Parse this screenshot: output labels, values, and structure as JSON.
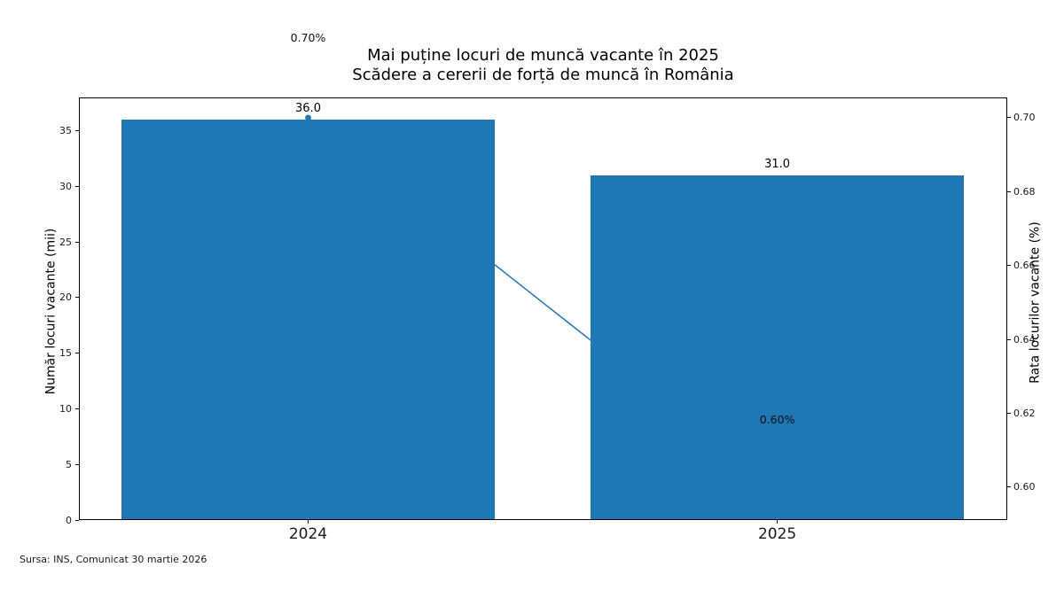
{
  "chart_data": {
    "type": "bar",
    "title": "Mai puține locuri de muncă vacante în 2025",
    "subtitle": "Scădere a cererii de forță de muncă în România",
    "categories": [
      "2024",
      "2025"
    ],
    "series": [
      {
        "name": "Număr locuri vacante (mii)",
        "chart": "bar",
        "axis": "left",
        "values": [
          36.0,
          31.0
        ],
        "point_labels": [
          "36.0",
          "31.0"
        ],
        "color": "#1f77b4"
      },
      {
        "name": "Rata locurilor vacante (%)",
        "chart": "line",
        "axis": "right",
        "values": [
          0.7,
          0.6
        ],
        "point_labels": [
          "0.70%",
          "0.60%"
        ],
        "color": "#1f77b4"
      }
    ],
    "left_axis": {
      "label": "Număr locuri vacante (mii)",
      "ticks": [
        0,
        5,
        10,
        15,
        20,
        25,
        30,
        35
      ],
      "range": [
        0,
        38.0
      ]
    },
    "right_axis": {
      "label": "Rata locurilor vacante (%)",
      "ticks": [
        "0.60",
        "0.62",
        "0.64",
        "0.66",
        "0.68",
        "0.70"
      ],
      "range": [
        0.5911,
        0.7055
      ]
    },
    "x_axis": {
      "tick_labels": [
        "2024",
        "2025"
      ]
    },
    "grid": false,
    "legend": false,
    "source": "Sursa: INS, Comunicat 30 martie 2026",
    "colors": {
      "bar": "#1f77b4",
      "line": "#1f77b4",
      "text": "#000000",
      "background": "#ffffff"
    }
  }
}
